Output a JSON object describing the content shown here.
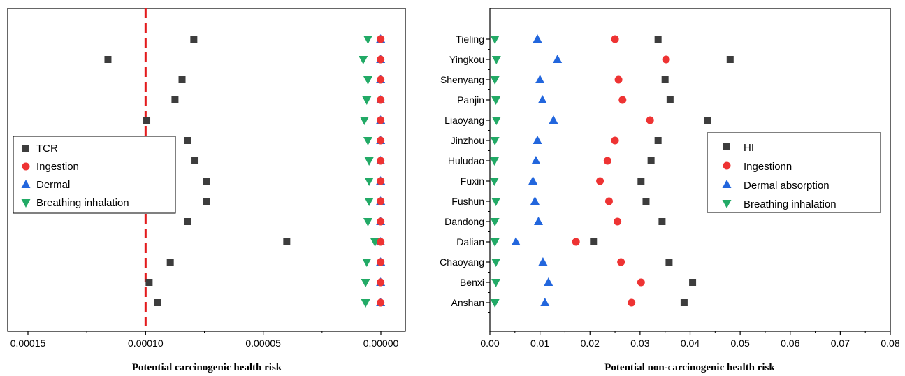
{
  "chart_data": [
    {
      "type": "scatter",
      "xlabel": "Potential carcinogenic health risk",
      "ylabel": "",
      "x_reversed": true,
      "xlim": [
        0,
        0.00016
      ],
      "xticks": [
        {
          "value": 0.00015,
          "label": "0.00015"
        },
        {
          "value": 0.0001,
          "label": "0.00010"
        },
        {
          "value": 5e-05,
          "label": "0.00005"
        },
        {
          "value": 0,
          "label": "0.00000"
        }
      ],
      "categories": [
        "Tieling",
        "Yingkou",
        "Shenyang",
        "Panjin",
        "Liaoyang",
        "Jinzhou",
        "Huludao",
        "Fuxin",
        "Fushun",
        "Dandong",
        "Dalian",
        "Chaoyang",
        "Benxi",
        "Anshan"
      ],
      "reference_line": {
        "value": 0.0001,
        "color": "#e31a1c",
        "style": "dashed"
      },
      "legend_position": "left",
      "series": [
        {
          "name": "TCR",
          "marker": "square",
          "color": "#3d3d3d",
          "values": [
            7.95e-05,
            0.000116,
            8.45e-05,
            8.75e-05,
            9.95e-05,
            8.2e-05,
            7.9e-05,
            7.4e-05,
            7.4e-05,
            8.2e-05,
            4e-05,
            8.95e-05,
            9.85e-05,
            9.5e-05
          ]
        },
        {
          "name": "Ingestion",
          "marker": "circle",
          "color": "#ee3333",
          "values": [
            1e-07,
            1e-07,
            1e-07,
            1e-07,
            1e-07,
            1e-07,
            1e-07,
            1e-07,
            1e-07,
            1e-07,
            1e-07,
            1e-07,
            1e-07,
            1e-07
          ]
        },
        {
          "name": "Dermal",
          "marker": "triangle-up",
          "color": "#2266dd",
          "values": [
            1e-07,
            1e-07,
            1e-07,
            1e-07,
            1e-07,
            1e-07,
            1e-07,
            1e-07,
            1e-07,
            1e-07,
            1e-07,
            1e-07,
            1e-07,
            1e-07
          ]
        },
        {
          "name": "Breathing inhalation",
          "marker": "triangle-down",
          "color": "#22aa66",
          "values": [
            5.5e-06,
            7.5e-06,
            5.5e-06,
            6e-06,
            7e-06,
            5.5e-06,
            5e-06,
            5e-06,
            5e-06,
            5.5e-06,
            2.5e-06,
            6e-06,
            6.5e-06,
            6.5e-06
          ]
        }
      ]
    },
    {
      "type": "scatter",
      "xlabel": "Potential non-carcinogenic health risk",
      "ylabel": "",
      "xlim": [
        0,
        0.08
      ],
      "xticks": [
        {
          "value": 0,
          "label": "0.00"
        },
        {
          "value": 0.01,
          "label": "0.01"
        },
        {
          "value": 0.02,
          "label": "0.02"
        },
        {
          "value": 0.03,
          "label": "0.03"
        },
        {
          "value": 0.04,
          "label": "0.04"
        },
        {
          "value": 0.05,
          "label": "0.05"
        },
        {
          "value": 0.06,
          "label": "0.06"
        },
        {
          "value": 0.07,
          "label": "0.07"
        },
        {
          "value": 0.08,
          "label": "0.08"
        }
      ],
      "categories": [
        "Tieling",
        "Yingkou",
        "Shenyang",
        "Panjin",
        "Liaoyang",
        "Jinzhou",
        "Huludao",
        "Fuxin",
        "Fushun",
        "Dandong",
        "Dalian",
        "Chaoyang",
        "Benxi",
        "Anshan"
      ],
      "legend_position": "right",
      "series": [
        {
          "name": "HI",
          "marker": "square",
          "color": "#3d3d3d",
          "values": [
            0.0336,
            0.048,
            0.035,
            0.036,
            0.0435,
            0.0336,
            0.0322,
            0.0302,
            0.0312,
            0.0344,
            0.0207,
            0.0358,
            0.0405,
            0.0388
          ]
        },
        {
          "name": "Ingestionn",
          "marker": "circle",
          "color": "#ee3333",
          "values": [
            0.025,
            0.0352,
            0.0257,
            0.0265,
            0.032,
            0.025,
            0.0235,
            0.022,
            0.0238,
            0.0255,
            0.0172,
            0.0262,
            0.0302,
            0.0283
          ]
        },
        {
          "name": "Dermal absorption",
          "marker": "triangle-up",
          "color": "#2266dd",
          "values": [
            0.0095,
            0.0135,
            0.01,
            0.0105,
            0.0127,
            0.0095,
            0.0092,
            0.0086,
            0.009,
            0.0097,
            0.0052,
            0.0106,
            0.0117,
            0.011
          ]
        },
        {
          "name": "Breathing inhalation",
          "marker": "triangle-down",
          "color": "#22aa66",
          "values": [
            0.001,
            0.0013,
            0.001,
            0.0012,
            0.0013,
            0.001,
            0.0009,
            0.0009,
            0.0012,
            0.001,
            0.001,
            0.0012,
            0.0012,
            0.001
          ]
        }
      ]
    }
  ]
}
